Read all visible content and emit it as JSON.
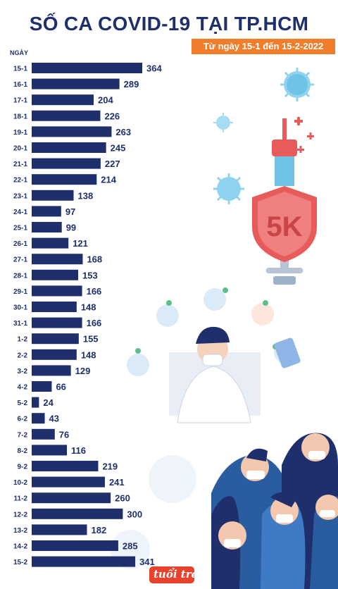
{
  "title": "SỐ CA COVID-19 TẠI TP.HCM",
  "subtitle": "Từ ngày 15-1 đến 15-2-2022",
  "logo_text": "tuổi trẻ",
  "illustration": {
    "shield_text": "5K",
    "icons": [
      "virus-icon",
      "syringe-icon",
      "shield-icon",
      "doctor-icon",
      "mask-icon",
      "handwash-icon",
      "phone-icon",
      "people-icon"
    ]
  },
  "colors": {
    "bar": "#1f2f6b",
    "title": "#1f2f6b",
    "subtitle_bg": "#f07d2c",
    "shield": "#e85b5b"
  },
  "chart_data": {
    "type": "bar",
    "orientation": "horizontal",
    "ylabel": "NGÀY",
    "categories": [
      "15-1",
      "16-1",
      "17-1",
      "18-1",
      "19-1",
      "20-1",
      "21-1",
      "22-1",
      "23-1",
      "24-1",
      "25-1",
      "26-1",
      "27-1",
      "28-1",
      "29-1",
      "30-1",
      "31-1",
      "1-2",
      "2-2",
      "3-2",
      "4-2",
      "5-2",
      "6-2",
      "7-2",
      "8-2",
      "9-2",
      "10-2",
      "11-2",
      "12-2",
      "13-2",
      "14-2",
      "15-2"
    ],
    "values": [
      364,
      289,
      204,
      226,
      263,
      245,
      227,
      214,
      138,
      97,
      99,
      121,
      168,
      153,
      166,
      148,
      166,
      155,
      148,
      129,
      66,
      24,
      43,
      76,
      116,
      219,
      241,
      260,
      300,
      182,
      285,
      341
    ],
    "grid": false,
    "data_labels": true
  }
}
